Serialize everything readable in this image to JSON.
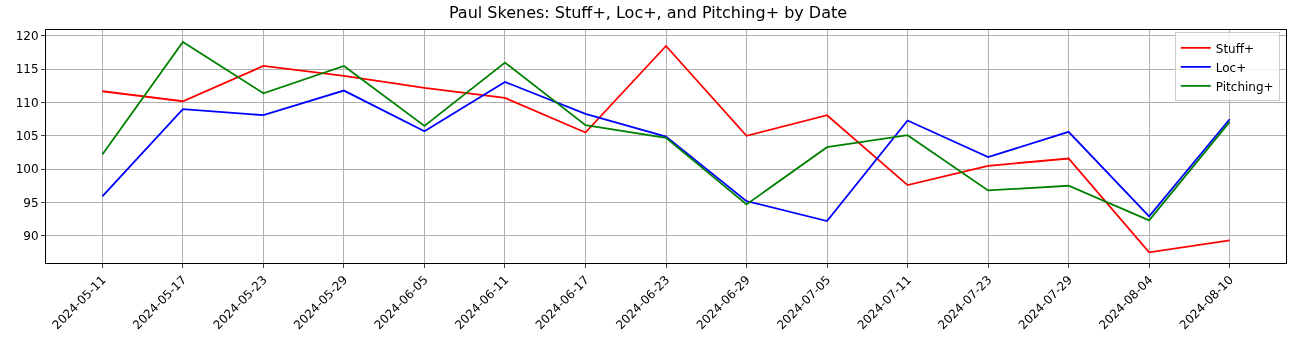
{
  "chart_data": {
    "type": "line",
    "title": "Paul Skenes: Stuff+, Loc+, and Pitching+ by Date",
    "categories": [
      "2024-05-11",
      "2024-05-17",
      "2024-05-23",
      "2024-05-29",
      "2024-06-05",
      "2024-06-11",
      "2024-06-17",
      "2024-06-23",
      "2024-06-29",
      "2024-07-05",
      "2024-07-11",
      "2024-07-23",
      "2024-07-29",
      "2024-08-04",
      "2024-08-10"
    ],
    "series": [
      {
        "name": "Stuff+",
        "color": "#ff0000",
        "values": [
          111.7,
          110.2,
          115.5,
          114.0,
          112.2,
          110.7,
          105.5,
          118.5,
          105.0,
          108.1,
          97.6,
          100.5,
          101.6,
          87.5,
          89.3
        ]
      },
      {
        "name": "Loc+",
        "color": "#0000ff",
        "values": [
          95.9,
          109.0,
          108.1,
          111.8,
          105.7,
          113.1,
          108.3,
          104.9,
          95.2,
          92.2,
          107.3,
          101.8,
          105.6,
          92.9,
          107.5
        ]
      },
      {
        "name": "Pitching+",
        "color": "#008000",
        "values": [
          102.2,
          119.1,
          111.4,
          115.5,
          106.5,
          116.0,
          106.6,
          104.7,
          94.7,
          103.3,
          105.1,
          96.8,
          97.5,
          92.3,
          107.1
        ]
      }
    ],
    "ylim": [
      85.9,
      120.9
    ],
    "yticks": [
      90,
      95,
      100,
      105,
      110,
      115,
      120
    ],
    "grid": true,
    "legend": "top right",
    "marker": "none",
    "line_style": "solid"
  }
}
